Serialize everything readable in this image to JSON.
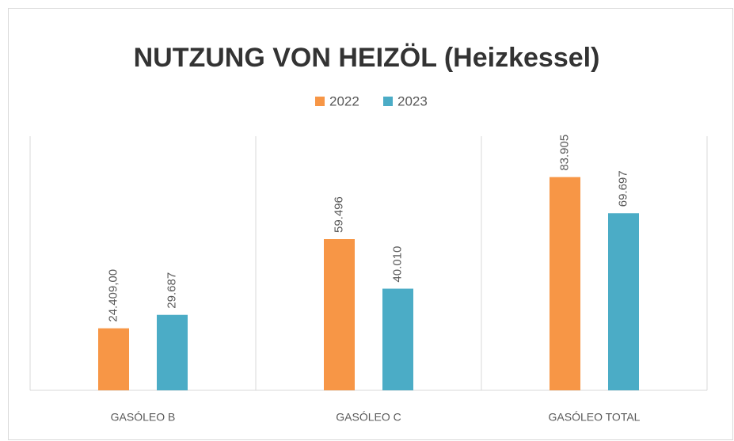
{
  "chart_data": {
    "type": "bar",
    "title": "NUTZUNG VON HEIZÖL (Heizkessel)",
    "categories": [
      "GASÓLEO B",
      "GASÓLEO C",
      "GASÓLEO TOTAL"
    ],
    "series": [
      {
        "name": "2022",
        "color": "#f79646",
        "values": [
          24409,
          59496,
          83905
        ],
        "value_labels": [
          "24.409,00",
          "59.496",
          "83.905"
        ]
      },
      {
        "name": "2023",
        "color": "#4bacc6",
        "values": [
          29687,
          40010,
          69697
        ],
        "value_labels": [
          "29.687",
          "40.010",
          "69.697"
        ]
      }
    ],
    "ylim": [
      0,
      100000
    ],
    "legend": "top"
  }
}
